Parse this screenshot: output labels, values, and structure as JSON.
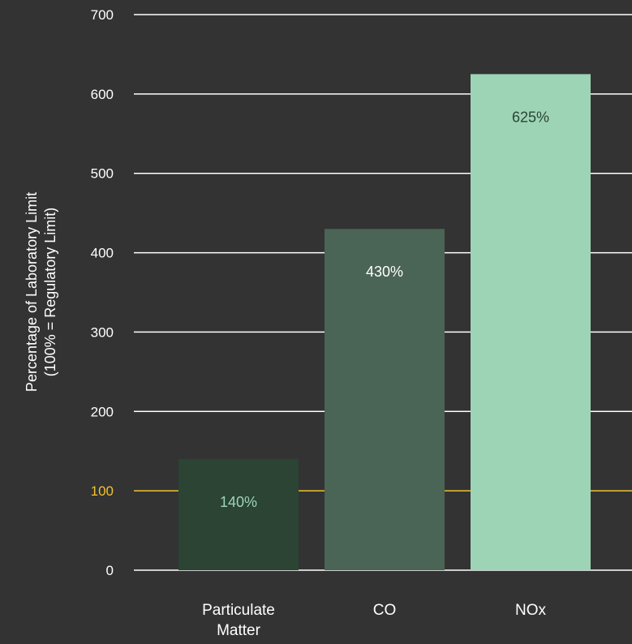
{
  "chart_data": {
    "type": "bar",
    "categories": [
      [
        "Particulate",
        "Matter"
      ],
      [
        "CO"
      ],
      [
        "NOx"
      ]
    ],
    "values": [
      140,
      430,
      625
    ],
    "data_labels": [
      "140%",
      "430%",
      "625%"
    ],
    "ylabel": [
      "Percentage of Laboratory Limit",
      "(100% = Regulatory Limit)"
    ],
    "ylim": [
      0,
      700
    ],
    "yticks": [
      0,
      100,
      200,
      300,
      400,
      500,
      600,
      700
    ],
    "grid": true,
    "reference_line": {
      "value": 100,
      "color": "#f2c230"
    },
    "bar_colors": [
      "#2b4434",
      "#4a6455",
      "#9dd4b6"
    ],
    "label_colors": [
      "#9dd4b6",
      "#ffffff",
      "#2b4434"
    ],
    "colors": {
      "background": "#333333",
      "grid": "#ffffff",
      "text": "#ffffff"
    }
  }
}
